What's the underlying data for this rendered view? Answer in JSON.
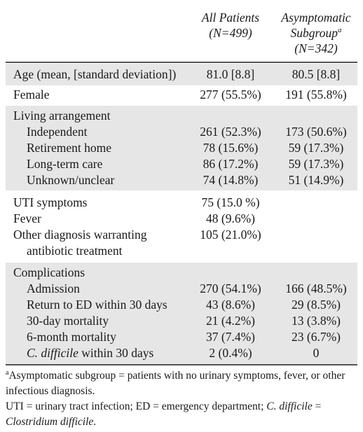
{
  "header": {
    "col1_line1": "All Patients",
    "col1_line2": "(N=499)",
    "col2_line1": "Asymptomatic",
    "col2_line2": "Subgroup",
    "col2_sup": "a",
    "col2_line3": "(N=342)"
  },
  "rows": {
    "age": {
      "label": "Age (mean, [standard deviation])",
      "all": "81.0 [8.8]",
      "sub": "80.5 [8.8]"
    },
    "female": {
      "label": "Female",
      "all": "277 (55.5%)",
      "sub": "191 (55.8%)"
    },
    "living": {
      "label": "Living arrangement",
      "independent": {
        "label": "Independent",
        "all": "261 (52.3%)",
        "sub": "173 (50.6%)"
      },
      "retirement": {
        "label": "Retirement home",
        "all": "78 (15.6%)",
        "sub": "59 (17.3%)"
      },
      "ltc": {
        "label": "Long-term care",
        "all": "86 (17.2%)",
        "sub": "59 (17.3%)"
      },
      "unknown": {
        "label": "Unknown/unclear",
        "all": "74 (14.8%)",
        "sub": "51 (14.9%)"
      }
    },
    "uti": {
      "label": "UTI symptoms",
      "all": "75 (15.0 %)"
    },
    "fever": {
      "label": "Fever",
      "all": "48 (9.6%)"
    },
    "other": {
      "label_line1": "Other diagnosis warranting",
      "label_line2": "antibiotic treatment",
      "all": "105 (21.0%)"
    },
    "complications": {
      "label": "Complications",
      "admission": {
        "label": "Admission",
        "all": "270 (54.1%)",
        "sub": "166 (48.5%)"
      },
      "return_ed": {
        "label": "Return to ED within 30 days",
        "all": "43 (8.6%)",
        "sub": "29 (8.5%)"
      },
      "mort30": {
        "label": "30-day mortality",
        "all": "21 (4.2%)",
        "sub": "13 (3.8%)"
      },
      "mort6m": {
        "label": "6-month mortality",
        "all": "37 (7.4%)",
        "sub": "23 (6.7%)"
      },
      "cdiff": {
        "label_italic": "C. difficile",
        "label_rest": " within 30 days",
        "all": "2 (0.4%)",
        "sub": "0"
      }
    }
  },
  "footnotes": {
    "a_sup": "a",
    "a_text": "Asymptomatic subgroup = patients with no urinary symptoms, fever, or other infectious diagnosis.",
    "abbrev_text": "UTI = urinary tract infection; ED = emergency department; ",
    "abbrev_italic1": "C. difficile",
    "abbrev_eq": " = ",
    "abbrev_italic2": "Clostridium difficile",
    "abbrev_end": "."
  }
}
